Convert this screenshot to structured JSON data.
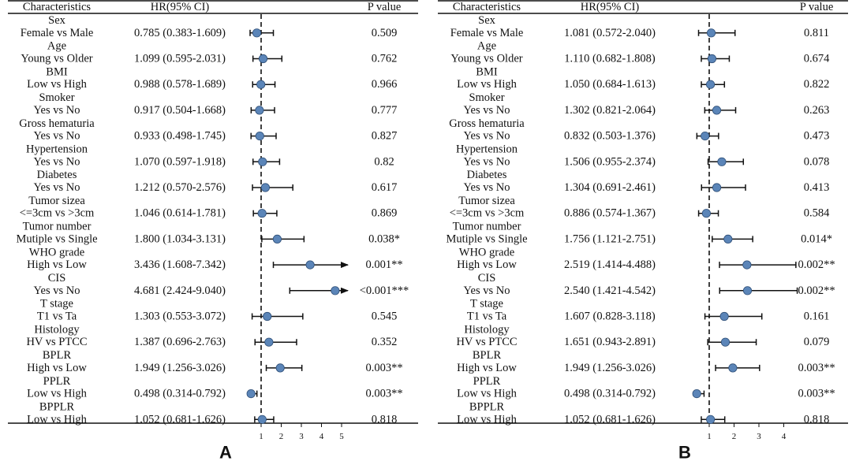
{
  "chart_data": [
    {
      "type": "forest",
      "panel_label": "A",
      "headers": {
        "characteristics": "Characteristics",
        "hr": "HR(95% CI)",
        "p": "P value"
      },
      "x_ticks": [
        1,
        2,
        3,
        4,
        5
      ],
      "reference_line": 1,
      "rows": [
        {
          "group": "Sex",
          "comparison": "Female vs Male",
          "hr": 0.785,
          "lo": 0.383,
          "hi": 1.609,
          "hr_text": "0.785 (0.383-1.609)",
          "p": "0.509",
          "arrow": false
        },
        {
          "group": "Age",
          "comparison": "Young vs Older",
          "hr": 1.099,
          "lo": 0.595,
          "hi": 2.031,
          "hr_text": "1.099 (0.595-2.031)",
          "p": "0.762",
          "arrow": false
        },
        {
          "group": "BMI",
          "comparison": "Low vs High",
          "hr": 0.988,
          "lo": 0.578,
          "hi": 1.689,
          "hr_text": "0.988 (0.578-1.689)",
          "p": "0.966",
          "arrow": false
        },
        {
          "group": "Smoker",
          "comparison": "Yes vs No",
          "hr": 0.917,
          "lo": 0.504,
          "hi": 1.668,
          "hr_text": "0.917 (0.504-1.668)",
          "p": "0.777",
          "arrow": false
        },
        {
          "group": "Gross hematuria",
          "comparison": "Yes vs No",
          "hr": 0.933,
          "lo": 0.498,
          "hi": 1.745,
          "hr_text": "0.933 (0.498-1.745)",
          "p": "0.827",
          "arrow": false
        },
        {
          "group": "Hypertension",
          "comparison": "Yes vs No",
          "hr": 1.07,
          "lo": 0.597,
          "hi": 1.918,
          "hr_text": "1.070 (0.597-1.918)",
          "p": "0.82",
          "arrow": false
        },
        {
          "group": "Diabetes",
          "comparison": "Yes vs No",
          "hr": 1.212,
          "lo": 0.57,
          "hi": 2.576,
          "hr_text": "1.212 (0.570-2.576)",
          "p": "0.617",
          "arrow": false
        },
        {
          "group": "Tumor sizea",
          "comparison": "<=3cm vs >3cm",
          "hr": 1.046,
          "lo": 0.614,
          "hi": 1.781,
          "hr_text": "1.046 (0.614-1.781)",
          "p": "0.869",
          "arrow": false
        },
        {
          "group": "Tumor number",
          "comparison": "Mutiple vs Single",
          "hr": 1.8,
          "lo": 1.034,
          "hi": 3.131,
          "hr_text": "1.800 (1.034-3.131)",
          "p": "0.038*",
          "arrow": false
        },
        {
          "group": "WHO grade",
          "comparison": "High vs Low",
          "hr": 3.436,
          "lo": 1.608,
          "hi": 7.342,
          "hr_text": "3.436 (1.608-7.342)",
          "p": "0.001**",
          "arrow": true
        },
        {
          "group": "CIS",
          "comparison": "Yes vs No",
          "hr": 4.681,
          "lo": 2.424,
          "hi": 9.04,
          "hr_text": "4.681 (2.424-9.040)",
          "p": "<0.001***",
          "arrow": true
        },
        {
          "group": "T stage",
          "comparison": "T1 vs Ta",
          "hr": 1.303,
          "lo": 0.553,
          "hi": 3.072,
          "hr_text": "1.303 (0.553-3.072)",
          "p": "0.545",
          "arrow": false
        },
        {
          "group": "Histology",
          "comparison": "HV vs PTCC",
          "hr": 1.387,
          "lo": 0.696,
          "hi": 2.763,
          "hr_text": "1.387 (0.696-2.763)",
          "p": "0.352",
          "arrow": false
        },
        {
          "group": "BPLR",
          "comparison": "High vs Low",
          "hr": 1.949,
          "lo": 1.256,
          "hi": 3.026,
          "hr_text": "1.949 (1.256-3.026)",
          "p": "0.003**",
          "arrow": false
        },
        {
          "group": "PPLR",
          "comparison": "Low vs High",
          "hr": 0.498,
          "lo": 0.314,
          "hi": 0.792,
          "hr_text": "0.498 (0.314-0.792)",
          "p": "0.003**",
          "arrow": false
        },
        {
          "group": "BPPLR",
          "comparison": "Low vs High",
          "hr": 1.052,
          "lo": 0.681,
          "hi": 1.626,
          "hr_text": "1.052 (0.681-1.626)",
          "p": "0.818",
          "arrow": false
        }
      ]
    },
    {
      "type": "forest",
      "panel_label": "B",
      "headers": {
        "characteristics": "Characteristics",
        "hr": "HR(95% CI)",
        "p": "P value"
      },
      "x_ticks": [
        1,
        2,
        3,
        4
      ],
      "reference_line": 1,
      "rows": [
        {
          "group": "Sex",
          "comparison": "Female vs Male",
          "hr": 1.081,
          "lo": 0.572,
          "hi": 2.04,
          "hr_text": "1.081 (0.572-2.040)",
          "p": "0.811",
          "arrow": false
        },
        {
          "group": "Age",
          "comparison": "Young vs Older",
          "hr": 1.11,
          "lo": 0.682,
          "hi": 1.808,
          "hr_text": "1.110 (0.682-1.808)",
          "p": "0.674",
          "arrow": false
        },
        {
          "group": "BMI",
          "comparison": "Low vs High",
          "hr": 1.05,
          "lo": 0.684,
          "hi": 1.613,
          "hr_text": "1.050 (0.684-1.613)",
          "p": "0.822",
          "arrow": false
        },
        {
          "group": "Smoker",
          "comparison": "Yes vs No",
          "hr": 1.302,
          "lo": 0.821,
          "hi": 2.064,
          "hr_text": "1.302 (0.821-2.064)",
          "p": "0.263",
          "arrow": false
        },
        {
          "group": "Gross hematuria",
          "comparison": "Yes vs No",
          "hr": 0.832,
          "lo": 0.503,
          "hi": 1.376,
          "hr_text": "0.832 (0.503-1.376)",
          "p": "0.473",
          "arrow": false
        },
        {
          "group": "Hypertension",
          "comparison": "Yes vs No",
          "hr": 1.506,
          "lo": 0.955,
          "hi": 2.374,
          "hr_text": "1.506 (0.955-2.374)",
          "p": "0.078",
          "arrow": false
        },
        {
          "group": "Diabetes",
          "comparison": "Yes vs No",
          "hr": 1.304,
          "lo": 0.691,
          "hi": 2.461,
          "hr_text": "1.304 (0.691-2.461)",
          "p": "0.413",
          "arrow": false
        },
        {
          "group": "Tumor sizea",
          "comparison": "<=3cm vs >3cm",
          "hr": 0.886,
          "lo": 0.574,
          "hi": 1.367,
          "hr_text": "0.886 (0.574-1.367)",
          "p": "0.584",
          "arrow": false
        },
        {
          "group": "Tumor number",
          "comparison": "Mutiple vs Single",
          "hr": 1.756,
          "lo": 1.121,
          "hi": 2.751,
          "hr_text": "1.756 (1.121-2.751)",
          "p": "0.014*",
          "arrow": false
        },
        {
          "group": "WHO grade",
          "comparison": "High vs Low",
          "hr": 2.519,
          "lo": 1.414,
          "hi": 4.488,
          "hr_text": "2.519 (1.414-4.488)",
          "p": "0.002**",
          "arrow": false
        },
        {
          "group": "CIS",
          "comparison": "Yes vs No",
          "hr": 2.54,
          "lo": 1.421,
          "hi": 4.542,
          "hr_text": "2.540 (1.421-4.542)",
          "p": "0.002**",
          "arrow": false
        },
        {
          "group": "T stage",
          "comparison": "T1 vs Ta",
          "hr": 1.607,
          "lo": 0.828,
          "hi": 3.118,
          "hr_text": "1.607 (0.828-3.118)",
          "p": "0.161",
          "arrow": false
        },
        {
          "group": "Histology",
          "comparison": "HV vs PTCC",
          "hr": 1.651,
          "lo": 0.943,
          "hi": 2.891,
          "hr_text": "1.651 (0.943-2.891)",
          "p": "0.079",
          "arrow": false
        },
        {
          "group": "BPLR",
          "comparison": "High vs Low",
          "hr": 1.949,
          "lo": 1.256,
          "hi": 3.026,
          "hr_text": "1.949 (1.256-3.026)",
          "p": "0.003**",
          "arrow": false
        },
        {
          "group": "PPLR",
          "comparison": "Low vs High",
          "hr": 0.498,
          "lo": 0.314,
          "hi": 0.792,
          "hr_text": "0.498 (0.314-0.792)",
          "p": "0.003**",
          "arrow": false
        },
        {
          "group": "BPPLR",
          "comparison": "Low vs High",
          "hr": 1.052,
          "lo": 0.681,
          "hi": 1.626,
          "hr_text": "1.052 (0.681-1.626)",
          "p": "0.818",
          "arrow": false
        }
      ]
    }
  ],
  "colors": {
    "marker": "#5b85b8",
    "marker_stroke": "#2f4f77",
    "line": "#111111"
  }
}
